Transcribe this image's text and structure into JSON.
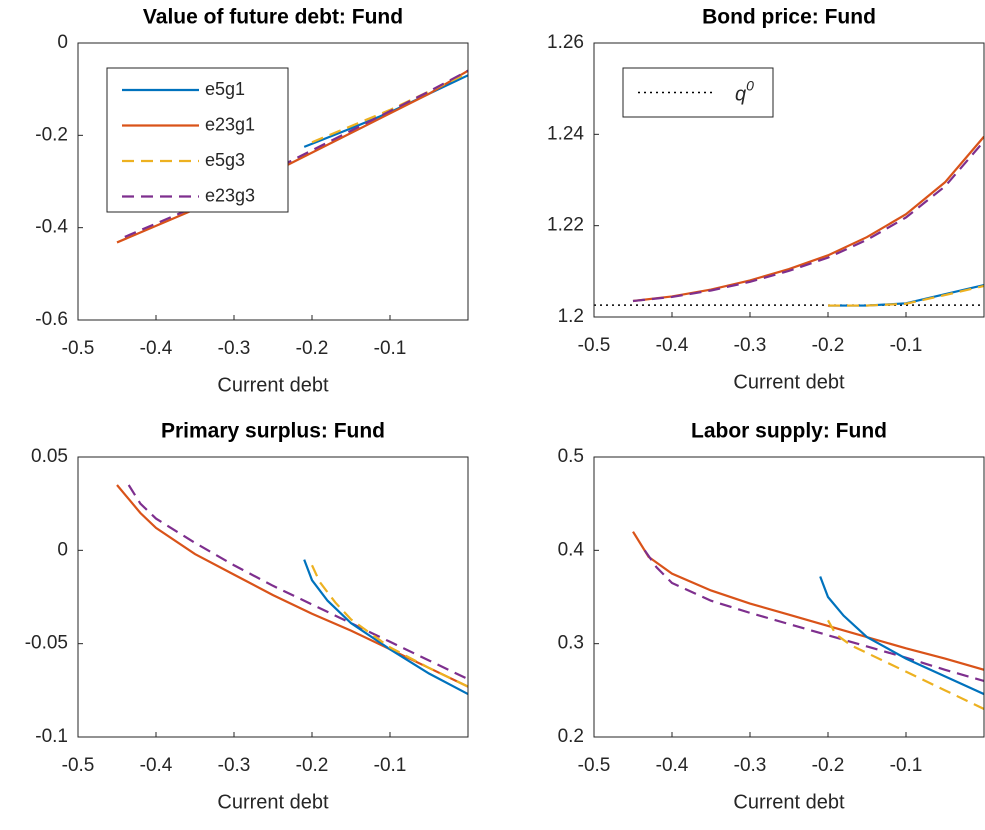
{
  "chart_data": [
    {
      "type": "line",
      "title": "Value of future debt: Fund",
      "xlabel": "Current debt",
      "xlim": [
        -0.5,
        0
      ],
      "ylim": [
        -0.6,
        0
      ],
      "xticks": [
        -0.5,
        -0.4,
        -0.3,
        -0.2,
        -0.1
      ],
      "yticks": [
        -0.6,
        -0.4,
        -0.2,
        0
      ],
      "legend": "upper left",
      "series": [
        {
          "name": "e5g1",
          "color": "#0072BD",
          "dash": "solid",
          "x": [
            -0.21,
            -0.15,
            -0.1,
            -0.05,
            0
          ],
          "values": [
            -0.225,
            -0.185,
            -0.15,
            -0.11,
            -0.07
          ]
        },
        {
          "name": "e23g1",
          "color": "#D95319",
          "dash": "solid",
          "x": [
            -0.45,
            -0.35,
            -0.25,
            -0.15,
            -0.05,
            0
          ],
          "values": [
            -0.432,
            -0.36,
            -0.28,
            -0.195,
            -0.11,
            -0.06
          ]
        },
        {
          "name": "e5g3",
          "color": "#EDB120",
          "dash": "dashed",
          "x": [
            -0.2,
            -0.15,
            -0.1,
            -0.05,
            0
          ],
          "values": [
            -0.215,
            -0.18,
            -0.145,
            -0.105,
            -0.065
          ]
        },
        {
          "name": "e23g3",
          "color": "#7E2F8E",
          "dash": "dashed",
          "x": [
            -0.44,
            -0.35,
            -0.25,
            -0.15,
            -0.05,
            0
          ],
          "values": [
            -0.42,
            -0.355,
            -0.275,
            -0.19,
            -0.105,
            -0.06
          ]
        }
      ]
    },
    {
      "type": "line",
      "title": "Bond price: Fund",
      "xlabel": "Current debt",
      "xlim": [
        -0.5,
        0
      ],
      "ylim": [
        1.2,
        1.26
      ],
      "xticks": [
        -0.5,
        -0.4,
        -0.3,
        -0.2,
        -0.1
      ],
      "yticks": [
        1.2,
        1.22,
        1.24,
        1.26
      ],
      "legend": "upper left",
      "hline": {
        "name": "q",
        "superscript": "0",
        "value": 1.2026,
        "color": "#000000"
      },
      "series": [
        {
          "color": "#0072BD",
          "dash": "solid",
          "x": [
            -0.2,
            -0.15,
            -0.1,
            -0.05,
            0
          ],
          "values": [
            1.2025,
            1.2025,
            1.203,
            1.205,
            1.207
          ]
        },
        {
          "color": "#EDB120",
          "dash": "dashed",
          "x": [
            -0.2,
            -0.15,
            -0.1,
            -0.05,
            0
          ],
          "values": [
            1.2025,
            1.2025,
            1.2029,
            1.2048,
            1.2068
          ]
        },
        {
          "color": "#D95319",
          "dash": "solid",
          "x": [
            -0.45,
            -0.4,
            -0.35,
            -0.3,
            -0.25,
            -0.2,
            -0.15,
            -0.1,
            -0.05,
            0
          ],
          "values": [
            1.2035,
            1.2045,
            1.206,
            1.208,
            1.2105,
            1.2135,
            1.2175,
            1.2225,
            1.2295,
            1.2395
          ]
        },
        {
          "color": "#7E2F8E",
          "dash": "dashed",
          "x": [
            -0.45,
            -0.4,
            -0.35,
            -0.3,
            -0.25,
            -0.2,
            -0.15,
            -0.1,
            -0.05,
            0
          ],
          "values": [
            1.2035,
            1.2044,
            1.2058,
            1.2077,
            1.2101,
            1.213,
            1.2169,
            1.2218,
            1.2286,
            1.2385
          ]
        }
      ]
    },
    {
      "type": "line",
      "title": "Primary surplus: Fund",
      "xlabel": "Current debt",
      "xlim": [
        -0.5,
        0
      ],
      "ylim": [
        -0.1,
        0.05
      ],
      "xticks": [
        -0.5,
        -0.4,
        -0.3,
        -0.2,
        -0.1
      ],
      "yticks": [
        -0.1,
        -0.05,
        0,
        0.05
      ],
      "series": [
        {
          "color": "#D95319",
          "dash": "solid",
          "x": [
            -0.45,
            -0.42,
            -0.4,
            -0.35,
            -0.3,
            -0.25,
            -0.2,
            -0.15,
            -0.1,
            -0.05,
            0
          ],
          "values": [
            0.035,
            0.02,
            0.012,
            -0.002,
            -0.013,
            -0.024,
            -0.034,
            -0.043,
            -0.053,
            -0.063,
            -0.073
          ]
        },
        {
          "color": "#7E2F8E",
          "dash": "dashed",
          "x": [
            -0.435,
            -0.42,
            -0.4,
            -0.35,
            -0.3,
            -0.25,
            -0.2,
            -0.15,
            -0.1,
            -0.05,
            0
          ],
          "values": [
            0.035,
            0.025,
            0.017,
            0.004,
            -0.008,
            -0.019,
            -0.029,
            -0.039,
            -0.049,
            -0.059,
            -0.069
          ]
        },
        {
          "color": "#0072BD",
          "dash": "solid",
          "x": [
            -0.21,
            -0.2,
            -0.18,
            -0.15,
            -0.1,
            -0.05,
            0
          ],
          "values": [
            -0.005,
            -0.016,
            -0.027,
            -0.039,
            -0.053,
            -0.066,
            -0.077
          ]
        },
        {
          "color": "#EDB120",
          "dash": "dashed",
          "x": [
            -0.2,
            -0.19,
            -0.17,
            -0.15,
            -0.1,
            -0.05,
            0
          ],
          "values": [
            -0.008,
            -0.017,
            -0.028,
            -0.037,
            -0.052,
            -0.063,
            -0.073
          ]
        }
      ]
    },
    {
      "type": "line",
      "title": "Labor supply: Fund",
      "xlabel": "Current debt",
      "xlim": [
        -0.5,
        0
      ],
      "ylim": [
        0.2,
        0.5
      ],
      "xticks": [
        -0.5,
        -0.4,
        -0.3,
        -0.2,
        -0.1
      ],
      "yticks": [
        0.2,
        0.3,
        0.4,
        0.5
      ],
      "series": [
        {
          "color": "#D95319",
          "dash": "solid",
          "x": [
            -0.45,
            -0.43,
            -0.4,
            -0.35,
            -0.3,
            -0.25,
            -0.2,
            -0.15,
            -0.1,
            -0.05,
            0
          ],
          "values": [
            0.42,
            0.393,
            0.375,
            0.357,
            0.343,
            0.331,
            0.319,
            0.307,
            0.295,
            0.284,
            0.272
          ]
        },
        {
          "color": "#7E2F8E",
          "dash": "dashed",
          "x": [
            -0.435,
            -0.42,
            -0.4,
            -0.35,
            -0.3,
            -0.25,
            -0.2,
            -0.15,
            -0.1,
            -0.05,
            0
          ],
          "values": [
            0.4,
            0.382,
            0.365,
            0.346,
            0.333,
            0.321,
            0.309,
            0.297,
            0.285,
            0.272,
            0.26
          ]
        },
        {
          "color": "#0072BD",
          "dash": "solid",
          "x": [
            -0.21,
            -0.2,
            -0.18,
            -0.15,
            -0.1,
            -0.05,
            0
          ],
          "values": [
            0.372,
            0.35,
            0.33,
            0.307,
            0.284,
            0.265,
            0.246
          ]
        },
        {
          "color": "#EDB120",
          "dash": "dashed",
          "x": [
            -0.2,
            -0.19,
            -0.17,
            -0.15,
            -0.1,
            -0.05,
            0
          ],
          "values": [
            0.325,
            0.31,
            0.298,
            0.29,
            0.27,
            0.25,
            0.23
          ]
        }
      ]
    }
  ]
}
